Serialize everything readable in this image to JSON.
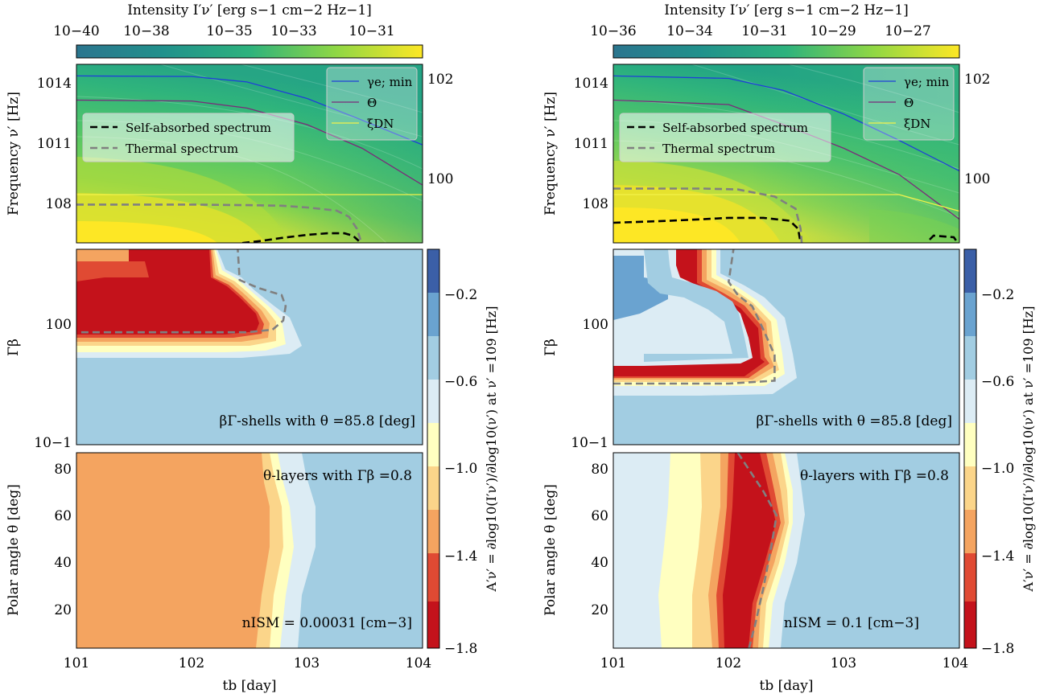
{
  "figure": {
    "columns": [
      {
        "intensity_colorbar": {
          "label": "Intensity I′ν′ [erg s−1 cm−2 Hz−1]",
          "ticks": [
            "10−40",
            "10−38",
            "10−35",
            "10−33",
            "10−31"
          ]
        },
        "alpha_colorbar": {
          "label": "A′ν′ = ∂log10(I′ν′)/∂log10(ν′) at ν′ =109 [Hz]",
          "ticks": [
            "−0.2",
            "−0.6",
            "−1.0",
            "−1.4",
            "−1.8"
          ]
        },
        "legend_lines": [
          "γe; min",
          "Θ",
          "ξDN"
        ],
        "legend_spectra": [
          "Self-absorbed spectrum",
          "Thermal spectrum"
        ],
        "panel_labels": {
          "shells": "βΓ-shells with θ =85.8 [deg]",
          "layers": "θ-layers with Γβ =0.8",
          "nism": "nISM = 0.00031 [cm−3]"
        }
      },
      {
        "intensity_colorbar": {
          "label": "Intensity I′ν′ [erg s−1 cm−2 Hz−1]",
          "ticks": [
            "10−36",
            "10−34",
            "10−31",
            "10−29",
            "10−27"
          ]
        },
        "alpha_colorbar": {
          "label": "A′ν′ = ∂log10(I′ν′)/∂log10(ν′) at ν′ =109 [Hz]",
          "ticks": [
            "−0.2",
            "−0.6",
            "−1.0",
            "−1.4",
            "−1.8"
          ]
        },
        "legend_lines": [
          "γe; min",
          "Θ",
          "ξDN"
        ],
        "legend_spectra": [
          "Self-absorbed spectrum",
          "Thermal spectrum"
        ],
        "panel_labels": {
          "shells": "βΓ-shells with θ =85.8 [deg]",
          "layers": "θ-layers with Γβ =0.8",
          "nism": "nISM = 0.1 [cm−3]"
        }
      }
    ],
    "axis_labels": {
      "freq": "Frequency ν′ [Hz]",
      "gb": "Γβ",
      "theta": "Polar angle θ [deg]",
      "x": "tb [day]"
    },
    "ticks": {
      "freq": [
        "1014",
        "1011",
        "108"
      ],
      "right": [
        "102",
        "100"
      ],
      "gb": [
        "100",
        "10−1"
      ],
      "theta": [
        "80",
        "60",
        "40",
        "20"
      ],
      "x": [
        "101",
        "102",
        "103",
        "104"
      ]
    }
  },
  "colors": {
    "gamma_line": "#1f3fd8",
    "theta_line": "#7a2a7a",
    "xi_line": "#f2f24a",
    "self_absorbed": "#000000",
    "thermal": "#808080",
    "alpha_levels": [
      "#c4121b",
      "#e04a33",
      "#f4a460",
      "#fbd58a",
      "#ffffc0",
      "#dcecf4",
      "#a2cde2",
      "#6aa3d0",
      "#3b5fa7"
    ]
  },
  "chart_data": [
    {
      "type": "heatmap",
      "title": "",
      "xlabel": "tb [day]",
      "xscale": "log",
      "xlim": [
        10,
        10000
      ],
      "ylabel": "Frequency ν′ [Hz]",
      "yscale": "log",
      "ylim": [
        4000000.0,
        3000000000000000.0
      ],
      "colorbar": {
        "label": "Intensity",
        "scale": "log",
        "range": [
          1e-41,
          1e-30
        ]
      },
      "series": [
        {
          "name": "γe; min",
          "axis": "right",
          "x": [
            10,
            100,
            300,
            1000,
            3000,
            10000
          ],
          "y": [
            800000000000000.0,
            750000000000000.0,
            400000000000000.0,
            60000000000000.0,
            5000000000000.0,
            300000000000.0
          ]
        },
        {
          "name": "Θ",
          "axis": "right",
          "x": [
            10,
            100,
            300,
            1000,
            3000,
            10000
          ],
          "y": [
            50000000000000.0,
            45000000000000.0,
            20000000000000.0,
            3000000000000.0,
            200000000000.0,
            3000000000.0
          ]
        },
        {
          "name": "ξDN",
          "axis": "right",
          "x": [
            10,
            10000
          ],
          "y": [
            1000000000.0,
            1000000000.0
          ]
        },
        {
          "name": "Self-absorbed spectrum",
          "x": [
            220,
            280,
            400,
            600,
            1000,
            1500,
            2100,
            2500,
            2800
          ],
          "y": [
            3000000.0,
            4000000.0,
            5000000.0,
            7000000.0,
            10000000.0,
            12000000.0,
            12000000.0,
            9000000.0,
            5000000.0
          ]
        },
        {
          "name": "Thermal spectrum",
          "x": [
            10,
            100,
            300,
            600,
            1000,
            1800,
            2300,
            2700,
            3000
          ],
          "y": [
            320000000.0,
            320000000.0,
            300000000.0,
            280000000.0,
            230000000.0,
            160000000.0,
            80000000.0,
            20000000.0,
            3000000.0
          ]
        }
      ]
    },
    {
      "type": "heatmap",
      "title": "",
      "xlabel": "tb [day]",
      "xscale": "log",
      "xlim": [
        10,
        10000
      ],
      "ylabel": "Γβ",
      "yscale": "log",
      "ylim": [
        0.1,
        5
      ],
      "colorbar": {
        "label": "A′ν′",
        "range": [
          -1.8,
          -0.0
        ],
        "levels": [
          -1.8,
          -1.6,
          -1.4,
          -1.2,
          -1.0,
          -0.8,
          -0.6,
          -0.4,
          -0.2
        ]
      },
      "regions": [
        {
          "value": -1.8,
          "boundary_t": [
            [
              5,
              260
            ],
            [
              3,
              280
            ],
            [
              2,
              480
            ],
            [
              1.5,
              650
            ],
            [
              1,
              680
            ],
            [
              0.8,
              420
            ],
            [
              0.8,
              10
            ]
          ]
        },
        {
          "value": -0.6,
          "boundary_t": [
            [
              5,
              280
            ],
            [
              2,
              520
            ],
            [
              1,
              880
            ],
            [
              0.7,
              1100
            ],
            [
              0.5,
              900
            ],
            [
              0.5,
              10
            ]
          ]
        }
      ],
      "series": [
        {
          "name": "Thermal spectrum",
          "x": [
            11,
            100,
            300,
            500,
            620,
            650,
            600,
            380,
            260,
            250
          ],
          "y": [
            0.95,
            0.95,
            0.95,
            1.0,
            1.2,
            1.6,
            2.0,
            2.3,
            2.7,
            5
          ]
        }
      ],
      "annotations": [
        "βΓ-shells with θ =85.8 [deg]"
      ]
    },
    {
      "type": "heatmap",
      "title": "",
      "xlabel": "tb [day]",
      "xscale": "log",
      "xlim": [
        10,
        10000
      ],
      "ylabel": "Polar angle θ [deg]",
      "ylim": [
        5,
        86
      ],
      "colorbar": {
        "label": "A′ν′",
        "range": [
          -1.8,
          -0.0
        ]
      },
      "regions": [
        {
          "value": -1.5,
          "boundary_t": [
            [
              86,
              270
            ],
            [
              60,
              300
            ],
            [
              40,
              280
            ],
            [
              5,
              260
            ]
          ]
        },
        {
          "value": -0.6,
          "boundary_t": [
            [
              86,
              800
            ],
            [
              60,
              900
            ],
            [
              40,
              850
            ],
            [
              5,
              700
            ]
          ]
        }
      ],
      "annotations": [
        "θ-layers with Γβ =0.8",
        "nISM = 0.00031 [cm−3]"
      ]
    },
    {
      "type": "heatmap",
      "title": "",
      "xlabel": "tb [day]",
      "xscale": "log",
      "xlim": [
        10,
        10000
      ],
      "ylabel": "Frequency ν′ [Hz]",
      "yscale": "log",
      "ylim": [
        4000000.0,
        3000000000000000.0
      ],
      "colorbar": {
        "label": "Intensity",
        "scale": "log",
        "range": [
          1e-37,
          1e-26
        ]
      },
      "series": [
        {
          "name": "γe; min",
          "axis": "right",
          "x": [
            10,
            100,
            300,
            1000,
            3000,
            10000
          ],
          "y": [
            800000000000000.0,
            600000000000000.0,
            150000000000000.0,
            10000000000000.0,
            500000000000.0,
            15000000000.0
          ]
        },
        {
          "name": "Θ",
          "axis": "right",
          "x": [
            10,
            100,
            300,
            1000,
            3000,
            10000
          ],
          "y": [
            50000000000000.0,
            30000000000000.0,
            3000000000000.0,
            200000000000.0,
            10000000000.0,
            60000000.0
          ]
        },
        {
          "name": "ξDN",
          "axis": "right",
          "x": [
            10,
            3000,
            10000
          ],
          "y": [
            1000000000.0,
            1000000000.0,
            150000000.0
          ]
        },
        {
          "name": "Self-absorbed spectrum",
          "x": [
            10,
            30,
            60,
            100,
            200,
            340,
            400,
            420
          ],
          "y": [
            40000000.0,
            50000000.0,
            60000000.0,
            70000000.0,
            70000000.0,
            50000000.0,
            20000000.0,
            4000000.0
          ]
        },
        {
          "name": "Thermal spectrum",
          "x": [
            10,
            60,
            120,
            250,
            380,
            420,
            430
          ],
          "y": [
            2000000000.0,
            2000000000.0,
            1800000000.0,
            800000000.0,
            200000000.0,
            20000000.0,
            4000000.0
          ]
        }
      ]
    },
    {
      "type": "heatmap",
      "title": "",
      "xlabel": "tb [day]",
      "xscale": "log",
      "xlim": [
        10,
        10000
      ],
      "ylabel": "Γβ",
      "yscale": "log",
      "ylim": [
        0.1,
        5
      ],
      "colorbar": {
        "label": "A′ν′",
        "range": [
          -1.8,
          -0.0
        ]
      },
      "regions": [
        {
          "value": -1.8,
          "boundary_t": [
            [
              5,
              100
            ],
            [
              3,
              75
            ],
            [
              2.4,
              120
            ],
            [
              1.6,
              200
            ],
            [
              0.8,
              230
            ],
            [
              0.5,
              260
            ],
            [
              0.33,
              220
            ],
            [
              0.33,
              10
            ]
          ]
        },
        {
          "value": -0.6,
          "boundary_t": [
            [
              5,
              130
            ],
            [
              2,
              260
            ],
            [
              1,
              360
            ],
            [
              0.5,
              420
            ],
            [
              0.28,
              500
            ],
            [
              0.26,
              10
            ]
          ]
        },
        {
          "value": -0.2,
          "boundary_t": [
            [
              3,
              10
            ],
            [
              3,
              50
            ],
            [
              1.6,
              40
            ],
            [
              1.3,
              10
            ]
          ]
        }
      ],
      "series": [
        {
          "name": "Thermal spectrum",
          "x": [
            10,
            100,
            250,
            250,
            200,
            160,
            120,
            100,
            110
          ],
          "y": [
            0.34,
            0.34,
            0.36,
            0.6,
            1.0,
            1.6,
            2.0,
            2.6,
            5
          ]
        }
      ],
      "annotations": [
        "βΓ-shells with θ =85.8 [deg]"
      ]
    },
    {
      "type": "heatmap",
      "title": "",
      "xlabel": "tb [day]",
      "xscale": "log",
      "xlim": [
        10,
        10000
      ],
      "ylabel": "Polar angle θ [deg]",
      "ylim": [
        5,
        86
      ],
      "colorbar": {
        "label": "A′ν′",
        "range": [
          -1.8,
          -0.0
        ]
      },
      "regions": [
        {
          "value": -1.0,
          "boundary_t": [
            [
              86,
              40
            ],
            [
              60,
              45
            ],
            [
              40,
              40
            ],
            [
              5,
              30
            ]
          ]
        },
        {
          "value": -1.8,
          "boundary_t": [
            [
              86,
              120
            ],
            [
              60,
              230
            ],
            [
              40,
              180
            ],
            [
              5,
              150
            ]
          ]
        },
        {
          "value": -0.6,
          "boundary_t": [
            [
              86,
              400
            ],
            [
              60,
              500
            ],
            [
              40,
              420
            ],
            [
              5,
              300
            ]
          ]
        }
      ],
      "series": [
        {
          "name": "Thermal spectrum",
          "x": [
            120,
            200,
            260,
            230,
            200,
            170,
            150
          ],
          "y": [
            86,
            70,
            60,
            45,
            30,
            15,
            5
          ]
        }
      ],
      "annotations": [
        "θ-layers with Γβ =0.8",
        "nISM = 0.1 [cm−3]"
      ]
    }
  ]
}
